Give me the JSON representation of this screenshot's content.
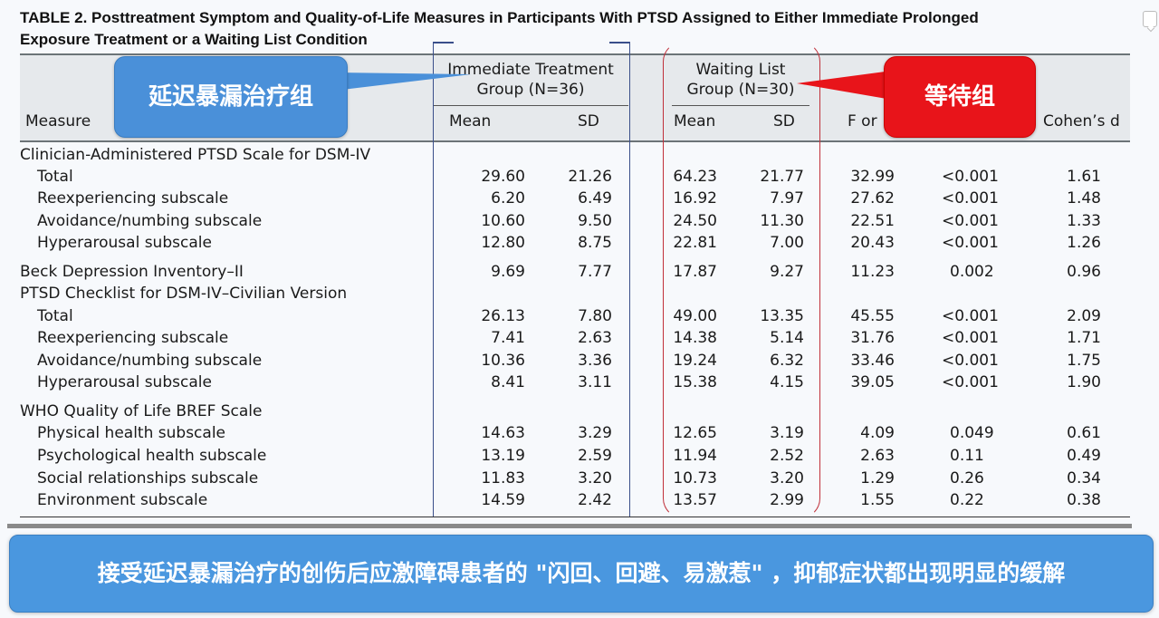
{
  "table": {
    "title_line1": "TABLE 2.  Posttreatment Symptom and Quality-of-Life Measures in Participants With PTSD Assigned to Either Immediate Prolonged",
    "title_line2": "Exposure Treatment or a Waiting List Condition",
    "headers": {
      "measure": "Measure",
      "group1_line1": "Immediate Treatment",
      "group1_line2": "Group (N=36)",
      "group2_line1": "Waiting List",
      "group2_line2": "Group (N=30)",
      "mean": "Mean",
      "sd": "SD",
      "f": "F or",
      "cohens_d": "Cohen’s d"
    },
    "rows": [
      {
        "label": "Clinician-Administered PTSD Scale for DSM-IV",
        "sub": false,
        "imm_mean": "",
        "imm_sd": "",
        "wl_mean": "",
        "wl_sd": "",
        "f": "",
        "p": "",
        "d": ""
      },
      {
        "label": "Total",
        "sub": true,
        "imm_mean": "29.60",
        "imm_sd": "21.26",
        "wl_mean": "64.23",
        "wl_sd": "21.77",
        "f": "32.99",
        "p": "<0.001",
        "d": "1.61"
      },
      {
        "label": "Reexperiencing subscale",
        "sub": true,
        "imm_mean": "6.20",
        "imm_sd": "6.49",
        "wl_mean": "16.92",
        "wl_sd": "7.97",
        "f": "27.62",
        "p": "<0.001",
        "d": "1.48"
      },
      {
        "label": "Avoidance/numbing subscale",
        "sub": true,
        "imm_mean": "10.60",
        "imm_sd": "9.50",
        "wl_mean": "24.50",
        "wl_sd": "11.30",
        "f": "22.51",
        "p": "<0.001",
        "d": "1.33"
      },
      {
        "label": "Hyperarousal subscale",
        "sub": true,
        "imm_mean": "12.80",
        "imm_sd": "8.75",
        "wl_mean": "22.81",
        "wl_sd": "7.00",
        "f": "20.43",
        "p": "<0.001",
        "d": "1.26"
      },
      {
        "label": "Beck Depression Inventory–II",
        "sub": false,
        "imm_mean": "9.69",
        "imm_sd": "7.77",
        "wl_mean": "17.87",
        "wl_sd": "9.27",
        "f": "11.23",
        "p": "0.002",
        "d": "0.96"
      },
      {
        "label": "PTSD Checklist for DSM-IV–Civilian Version",
        "sub": false,
        "imm_mean": "",
        "imm_sd": "",
        "wl_mean": "",
        "wl_sd": "",
        "f": "",
        "p": "",
        "d": ""
      },
      {
        "label": "Total",
        "sub": true,
        "imm_mean": "26.13",
        "imm_sd": "7.80",
        "wl_mean": "49.00",
        "wl_sd": "13.35",
        "f": "45.55",
        "p": "<0.001",
        "d": "2.09"
      },
      {
        "label": "Reexperiencing subscale",
        "sub": true,
        "imm_mean": "7.41",
        "imm_sd": "2.63",
        "wl_mean": "14.38",
        "wl_sd": "5.14",
        "f": "31.76",
        "p": "<0.001",
        "d": "1.71"
      },
      {
        "label": "Avoidance/numbing subscale",
        "sub": true,
        "imm_mean": "10.36",
        "imm_sd": "3.36",
        "wl_mean": "19.24",
        "wl_sd": "6.32",
        "f": "33.46",
        "p": "<0.001",
        "d": "1.75"
      },
      {
        "label": "Hyperarousal subscale",
        "sub": true,
        "imm_mean": "8.41",
        "imm_sd": "3.11",
        "wl_mean": "15.38",
        "wl_sd": "4.15",
        "f": "39.05",
        "p": "<0.001",
        "d": "1.90"
      },
      {
        "label": "WHO Quality of Life BREF Scale",
        "sub": false,
        "imm_mean": "",
        "imm_sd": "",
        "wl_mean": "",
        "wl_sd": "",
        "f": "",
        "p": "",
        "d": ""
      },
      {
        "label": "Physical health subscale",
        "sub": true,
        "imm_mean": "14.63",
        "imm_sd": "3.29",
        "wl_mean": "12.65",
        "wl_sd": "3.19",
        "f": "4.09",
        "p": "0.049",
        "d": "0.61"
      },
      {
        "label": "Psychological health subscale",
        "sub": true,
        "imm_mean": "13.19",
        "imm_sd": "2.59",
        "wl_mean": "11.94",
        "wl_sd": "2.52",
        "f": "2.63",
        "p": "0.11",
        "d": "0.49"
      },
      {
        "label": "Social relationships subscale",
        "sub": true,
        "imm_mean": "11.83",
        "imm_sd": "3.20",
        "wl_mean": "10.73",
        "wl_sd": "3.20",
        "f": "1.29",
        "p": "0.26",
        "d": "0.34"
      },
      {
        "label": "Environment subscale",
        "sub": true,
        "imm_mean": "14.59",
        "imm_sd": "2.42",
        "wl_mean": "13.57",
        "wl_sd": "2.99",
        "f": "1.55",
        "p": "0.22",
        "d": "0.38"
      }
    ]
  },
  "annotations": {
    "blue_callout": "延迟暴漏治疗组",
    "red_callout": "等待组",
    "banner": "接受延迟暴漏治疗的创伤后应激障碍患者的 \"闪回、回避、易激惹\" ，抑郁症状都出现明显的缓解"
  },
  "colors": {
    "blue_callout": "#4a90d9",
    "red_callout": "#e8141a",
    "banner": "#4a97df",
    "header_band": "#e6e9ec"
  }
}
